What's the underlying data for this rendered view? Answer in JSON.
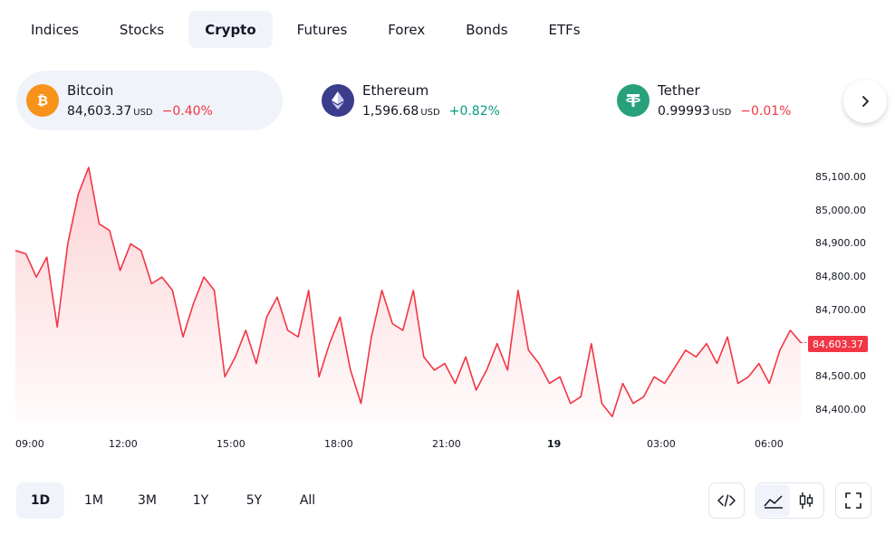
{
  "tabs": [
    {
      "label": "Indices",
      "active": false
    },
    {
      "label": "Stocks",
      "active": false
    },
    {
      "label": "Crypto",
      "active": true
    },
    {
      "label": "Futures",
      "active": false
    },
    {
      "label": "Forex",
      "active": false
    },
    {
      "label": "Bonds",
      "active": false
    },
    {
      "label": "ETFs",
      "active": false
    }
  ],
  "tickers": [
    {
      "name": "Bitcoin",
      "price": "84,603.37",
      "currency": "USD",
      "change": "−0.40%",
      "direction": "down",
      "icon": "bitcoin-icon",
      "color": "#f7931a",
      "active": true
    },
    {
      "name": "Ethereum",
      "price": "1,596.68",
      "currency": "USD",
      "change": "+0.82%",
      "direction": "up",
      "icon": "ethereum-icon",
      "color": "#3c3c8c",
      "active": false
    },
    {
      "name": "Tether",
      "price": "0.99993",
      "currency": "USD",
      "change": "−0.01%",
      "direction": "down",
      "icon": "tether-icon",
      "color": "#26a17b",
      "active": false
    }
  ],
  "next_icon": "chevron-right-icon",
  "chart_data": {
    "type": "area",
    "series": [
      {
        "values": [
          84880,
          84870,
          84800,
          84860,
          84650,
          84900,
          85050,
          85130,
          84960,
          84940,
          84820,
          84900,
          84880,
          84780,
          84800,
          84760,
          84620,
          84720,
          84800,
          84760,
          84500,
          84560,
          84640,
          84540,
          84680,
          84740,
          84640,
          84620,
          84760,
          84500,
          84600,
          84680,
          84520,
          84420,
          84620,
          84760,
          84660,
          84640,
          84760,
          84560,
          84520,
          84540,
          84480,
          84560,
          84460,
          84520,
          84600,
          84520,
          84760,
          84580,
          84540,
          84480,
          84500,
          84420,
          84440,
          84600,
          84420,
          84380,
          84480,
          84420,
          84440,
          84500,
          84480,
          84530,
          84580,
          84560,
          84600,
          84540,
          84620,
          84480,
          84500,
          84540,
          84480,
          84580,
          84640,
          84603
        ]
      }
    ],
    "ylim": [
      84350,
      85150
    ],
    "y_ticks": [
      "85,100.00",
      "85,000.00",
      "84,900.00",
      "84,800.00",
      "84,700.00",
      "84,600.00",
      "84,500.00",
      "84,400.00"
    ],
    "x_ticks": [
      "09:00",
      "12:00",
      "15:00",
      "18:00",
      "21:00",
      "19",
      "03:00",
      "06:00"
    ],
    "last_value": "84,603.37",
    "line_color": "#f23645"
  },
  "ranges": [
    {
      "label": "1D",
      "active": true
    },
    {
      "label": "1M",
      "active": false
    },
    {
      "label": "3M",
      "active": false
    },
    {
      "label": "1Y",
      "active": false
    },
    {
      "label": "5Y",
      "active": false
    },
    {
      "label": "All",
      "active": false
    }
  ],
  "toolbar": {
    "embed_icon": "code-icon",
    "area_icon": "area-chart-icon",
    "candle_icon": "candlestick-icon",
    "fullscreen_icon": "fullscreen-icon"
  }
}
